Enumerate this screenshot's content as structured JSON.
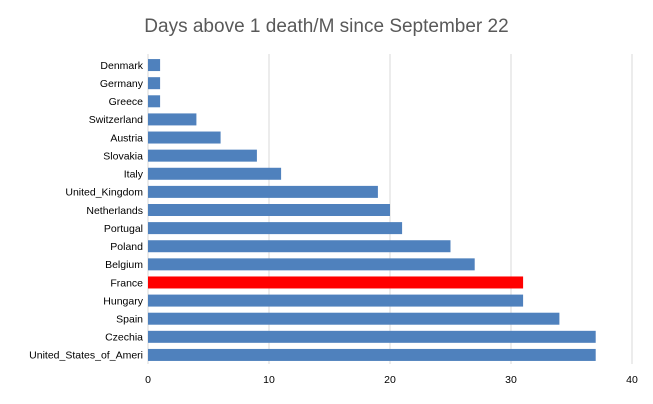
{
  "chart_data": {
    "type": "bar",
    "orientation": "horizontal",
    "title": "Days above 1 death/M since September 22",
    "xlabel": "",
    "ylabel": "",
    "categories": [
      "Denmark",
      "Germany",
      "Greece",
      "Switzerland",
      "Austria",
      "Slovakia",
      "Italy",
      "United_Kingdom",
      "Netherlands",
      "Portugal",
      "Poland",
      "Belgium",
      "France",
      "Hungary",
      "Spain",
      "Czechia",
      "United_States_of_Ameri"
    ],
    "values": [
      1,
      1,
      1,
      4,
      6,
      9,
      11,
      19,
      20,
      21,
      25,
      27,
      31,
      31,
      34,
      37,
      37
    ],
    "highlight_category": "France",
    "xlim": [
      0,
      40
    ],
    "xticks": [
      0,
      10,
      20,
      30,
      40
    ],
    "grid": true,
    "colors": {
      "bar": "#4f81bd",
      "highlight": "#ff0000",
      "grid": "#d9d9d9",
      "title": "#595959"
    }
  }
}
